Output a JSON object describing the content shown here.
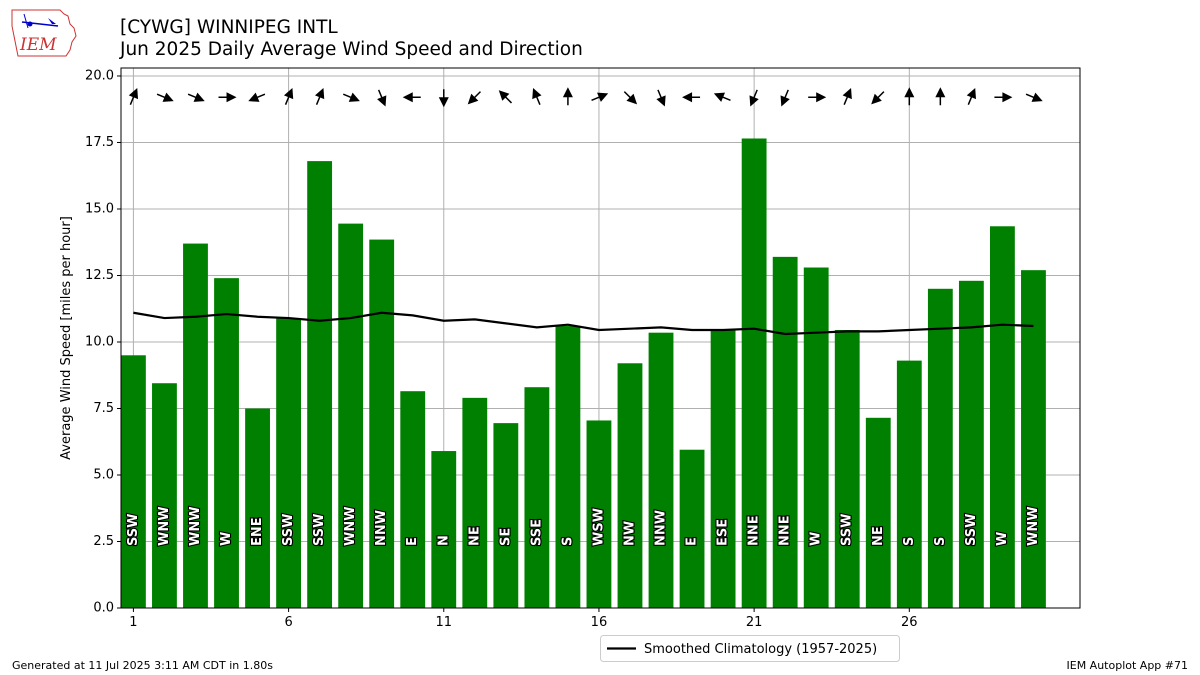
{
  "header": {
    "logo_text": "IEM",
    "title_line1": "[CYWG] WINNIPEG INTL",
    "title_line2": "Jun 2025 Daily Average Wind Speed and Direction"
  },
  "footer": {
    "generated": "Generated at 11 Jul 2025 3:11 AM CDT in 1.80s",
    "app": "IEM Autoplot App #71"
  },
  "colors": {
    "bar": "#008000",
    "climatology": "#000000",
    "grid": "#b0b0b0",
    "arrow": "#000000"
  },
  "chart_data": {
    "type": "bar",
    "ylabel": "Average Wind Speed [miles per hour]",
    "ylim": [
      0,
      20.3
    ],
    "yticks": [
      0.0,
      2.5,
      5.0,
      7.5,
      10.0,
      12.5,
      15.0,
      17.5,
      20.0
    ],
    "xlim": [
      0.6,
      31.5
    ],
    "xticks": [
      1,
      6,
      11,
      16,
      21,
      26
    ],
    "grid": true,
    "legend_position": "bottom-center",
    "x": [
      1,
      2,
      3,
      4,
      5,
      6,
      7,
      8,
      9,
      10,
      11,
      12,
      13,
      14,
      15,
      16,
      17,
      18,
      19,
      20,
      21,
      22,
      23,
      24,
      25,
      26,
      27,
      28,
      29,
      30
    ],
    "values": [
      9.5,
      8.45,
      13.7,
      12.4,
      7.5,
      10.9,
      16.8,
      14.45,
      13.85,
      8.15,
      5.9,
      7.9,
      6.95,
      8.3,
      10.6,
      7.05,
      9.2,
      10.35,
      5.95,
      10.45,
      17.65,
      13.2,
      12.8,
      10.45,
      7.15,
      9.3,
      12.0,
      12.3,
      14.35,
      12.7
    ],
    "directions": [
      "SSW",
      "WNW",
      "WNW",
      "W",
      "ENE",
      "SSW",
      "SSW",
      "WNW",
      "NNW",
      "E",
      "N",
      "NE",
      "SE",
      "SSE",
      "S",
      "WSW",
      "NW",
      "NNW",
      "E",
      "ESE",
      "NNE",
      "NNE",
      "W",
      "SSW",
      "NE",
      "S",
      "S",
      "SSW",
      "W",
      "WNW"
    ],
    "climatology": {
      "name": "Smoothed Climatology (1957-2025)",
      "values": [
        11.1,
        10.9,
        10.95,
        11.05,
        10.95,
        10.9,
        10.8,
        10.9,
        11.1,
        11.0,
        10.8,
        10.85,
        10.7,
        10.55,
        10.65,
        10.45,
        10.5,
        10.55,
        10.45,
        10.45,
        10.5,
        10.3,
        10.35,
        10.4,
        10.4,
        10.45,
        10.5,
        10.55,
        10.65,
        10.6
      ]
    }
  }
}
